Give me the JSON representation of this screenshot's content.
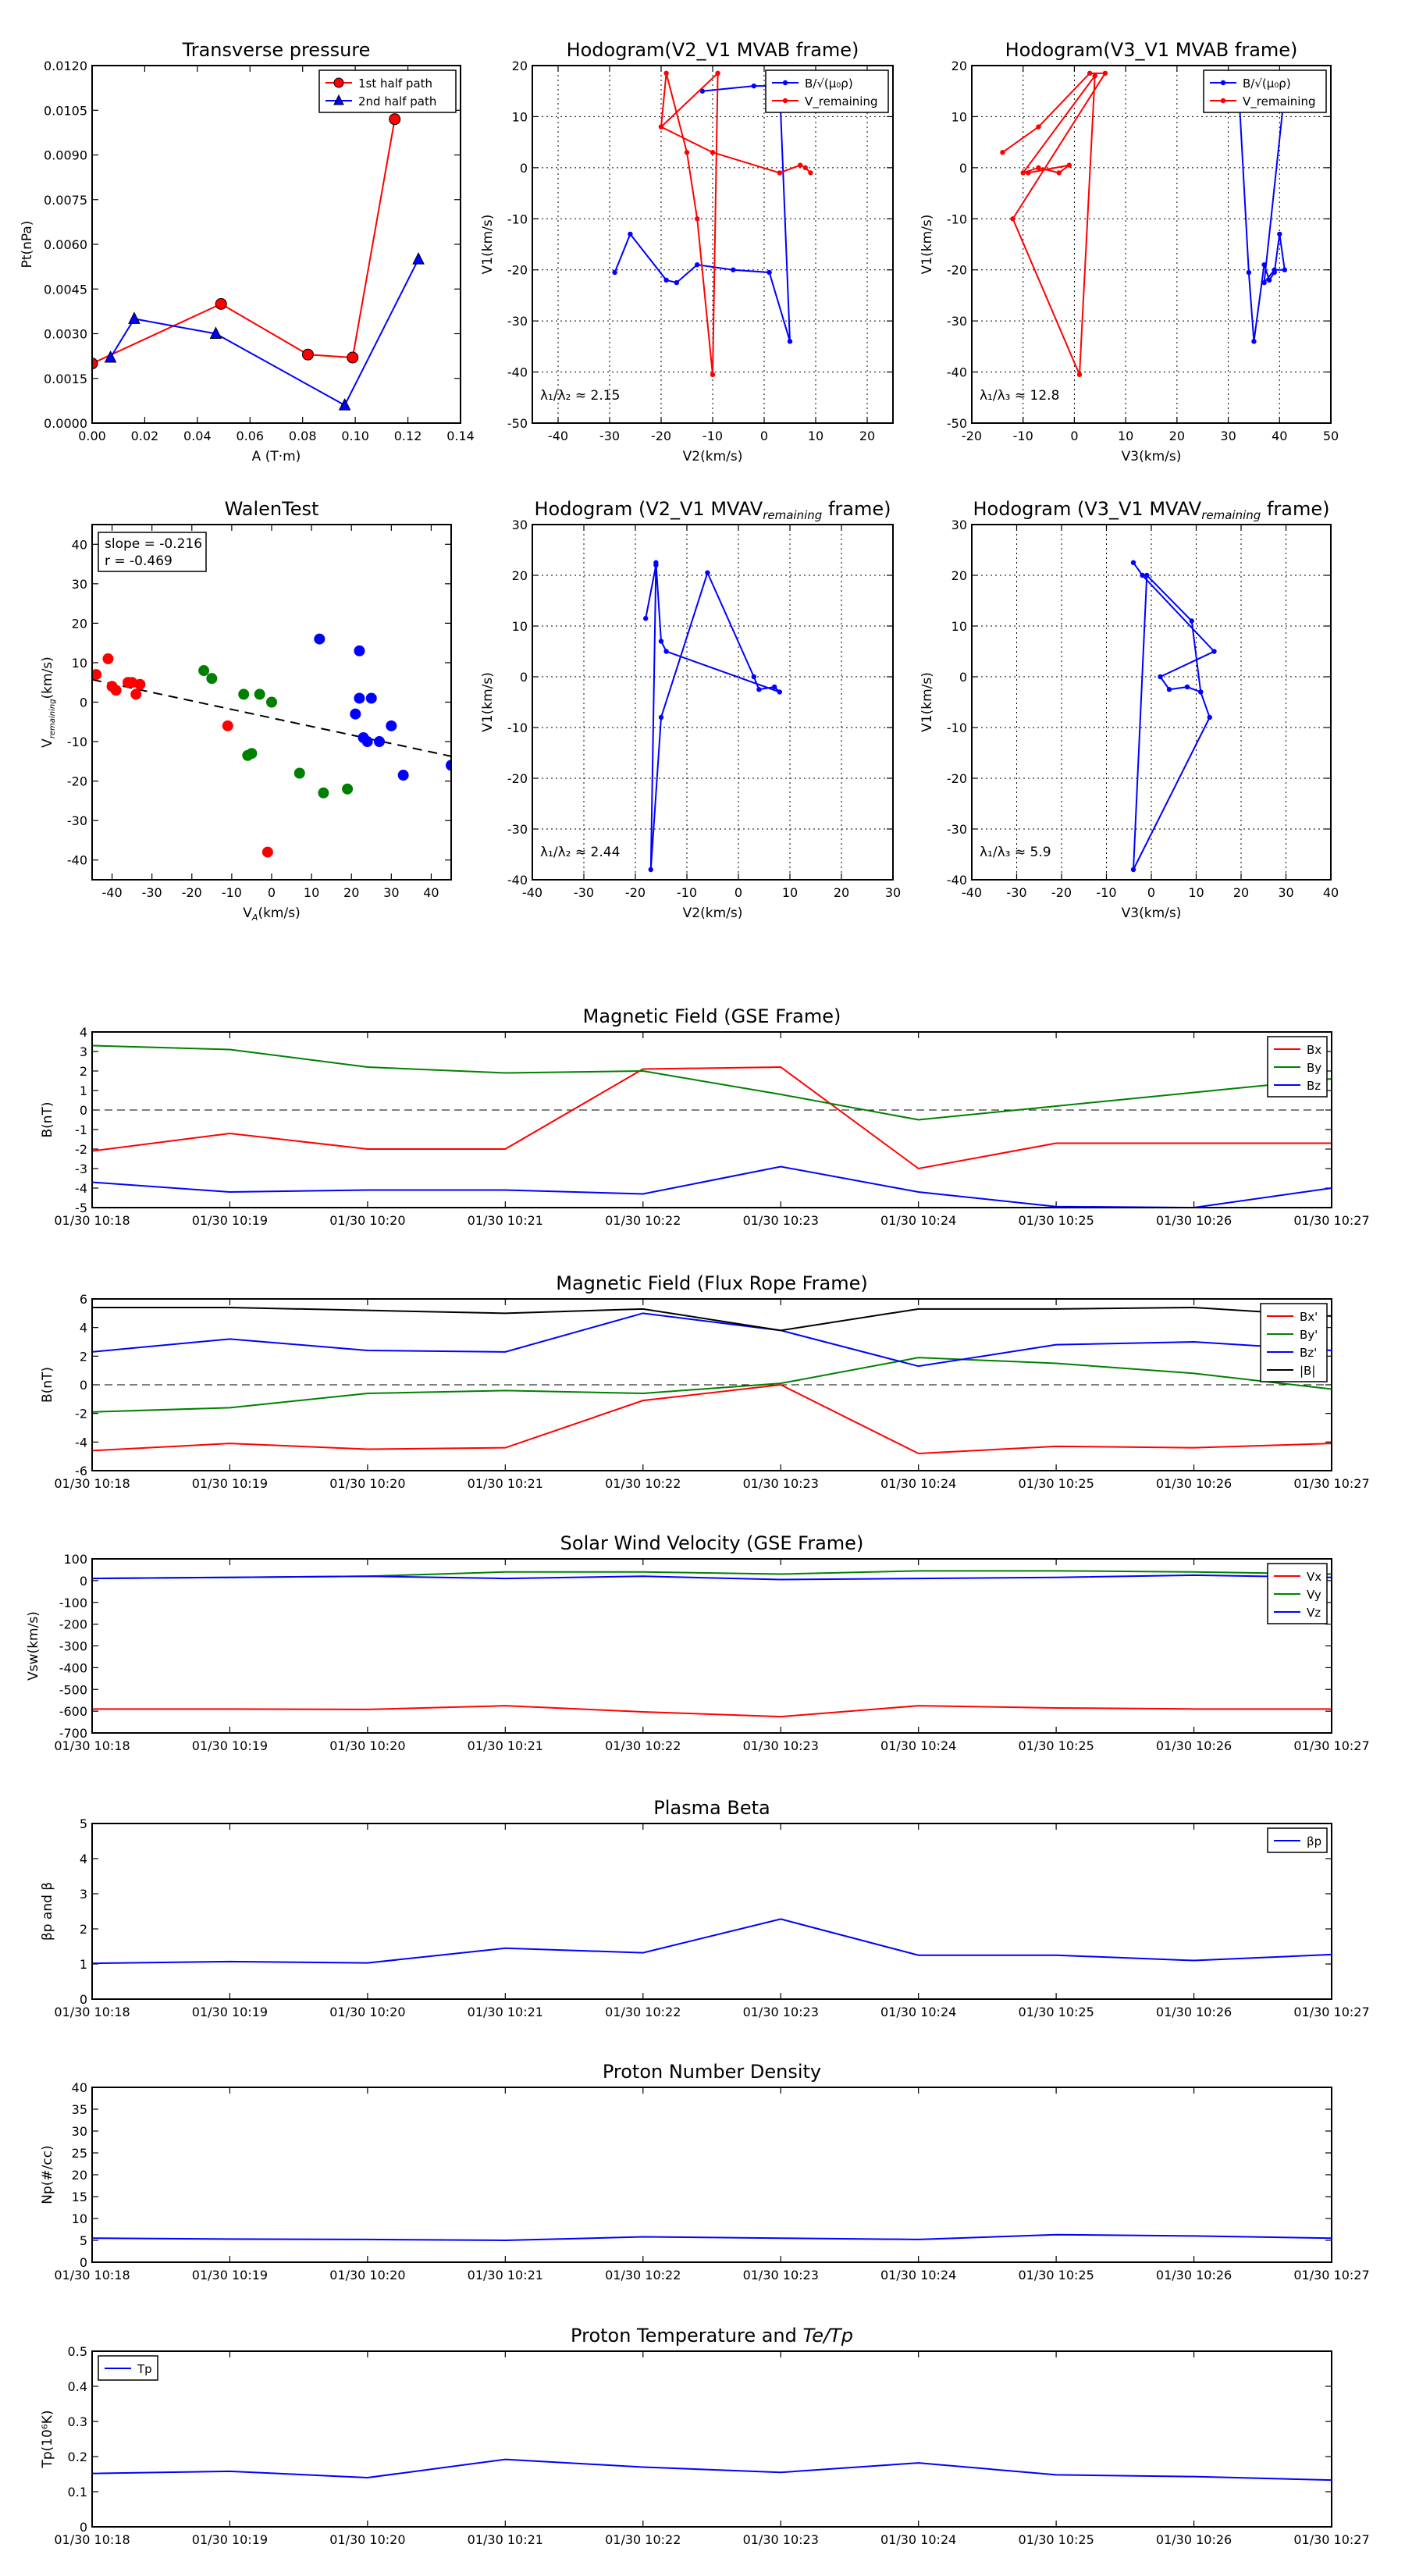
{
  "chart_data": [
    {
      "type": "line",
      "title": "Transverse pressure",
      "xlabel": "A (T·m)",
      "ylabel": "Pt(nPa)",
      "xlim": [
        0.0,
        0.14
      ],
      "ylim": [
        0.0,
        0.012
      ],
      "xticks": [
        0.0,
        0.02,
        0.04,
        0.06,
        0.08,
        0.1,
        0.12,
        0.14
      ],
      "xticklabels": [
        "0.00",
        "0.02",
        "0.04",
        "0.06",
        "0.08",
        "0.10",
        "0.12",
        "0.14"
      ],
      "yticks": [
        0,
        0.0015,
        0.003,
        0.0045,
        0.006,
        0.0075,
        0.009,
        0.0105,
        0.012
      ],
      "yticklabels": [
        "0.0000",
        "0.0015",
        "0.0030",
        "0.0045",
        "0.0060",
        "0.0075",
        "0.0090",
        "0.0105",
        "0.0120"
      ],
      "grid": false,
      "legend_loc": "top-right",
      "series": [
        {
          "name": "1st half path",
          "color": "#ff0000",
          "marker": "circle",
          "x": [
            0.0,
            0.049,
            0.082,
            0.099,
            0.115
          ],
          "y": [
            0.002,
            0.004,
            0.0023,
            0.0022,
            0.0102
          ]
        },
        {
          "name": "2nd half path",
          "color": "#0000ff",
          "marker": "triangle",
          "x": [
            0.007,
            0.016,
            0.047,
            0.096,
            0.124
          ],
          "y": [
            0.0022,
            0.0035,
            0.003,
            0.0006,
            0.0055
          ]
        }
      ]
    },
    {
      "type": "line",
      "title": "Hodogram(V2_V1 MVAB frame)",
      "xlabel": "V2(km/s)",
      "ylabel": "V1(km/s)",
      "xlim": [
        -45,
        25
      ],
      "ylim": [
        -50,
        20
      ],
      "xticks": [
        -40,
        -30,
        -20,
        -10,
        0,
        10,
        20
      ],
      "yticks": [
        -50,
        -40,
        -30,
        -20,
        -10,
        0,
        10,
        20
      ],
      "grid": true,
      "legend_loc": "top-right",
      "annotation": "λ₁/λ₂ ≈ 2.15",
      "series": [
        {
          "name": "B/√(μ₀ρ)",
          "color": "#0000ff",
          "x": [
            -29,
            -26,
            -19,
            -17,
            -13,
            -6,
            1,
            5,
            3,
            -2,
            -12
          ],
          "y": [
            -20.5,
            -13,
            -22,
            -22.5,
            -19,
            -20,
            -20.5,
            -34,
            16,
            16,
            15
          ]
        },
        {
          "name": "V_remaining",
          "color": "#ff0000",
          "x": [
            -20,
            -19,
            -15,
            -13,
            -10,
            -9,
            -20,
            -10,
            3,
            7,
            8,
            9
          ],
          "y": [
            8,
            18.5,
            3,
            -10,
            -40.5,
            18.5,
            8,
            3,
            -1,
            0.5,
            0,
            -1
          ]
        }
      ]
    },
    {
      "type": "line",
      "title": "Hodogram(V3_V1 MVAB frame)",
      "xlabel": "V3(km/s)",
      "ylabel": "V1(km/s)",
      "xlim": [
        -20,
        50
      ],
      "ylim": [
        -50,
        20
      ],
      "xticks": [
        -20,
        -10,
        0,
        10,
        20,
        30,
        40,
        50
      ],
      "yticks": [
        -50,
        -40,
        -30,
        -20,
        -10,
        0,
        10,
        20
      ],
      "grid": true,
      "legend_loc": "top-right",
      "annotation": "λ₁/λ₃ ≈ 12.8",
      "series": [
        {
          "name": "B/√(μ₀ρ)",
          "color": "#0000ff",
          "x": [
            30,
            32,
            34,
            35,
            37,
            38,
            39,
            40,
            41,
            39,
            37,
            41
          ],
          "y": [
            16,
            16,
            -20.5,
            -34,
            -19,
            -22,
            -20.5,
            -13,
            -20,
            -20,
            -22.5,
            15
          ]
        },
        {
          "name": "V_remaining",
          "color": "#ff0000",
          "x": [
            -14,
            -7,
            3,
            6,
            -12,
            1,
            4,
            -10,
            -7,
            -3,
            -1,
            -9
          ],
          "y": [
            3,
            8,
            18.5,
            18.5,
            -10,
            -40.5,
            18,
            -1,
            0,
            -1,
            0.5,
            -1
          ]
        }
      ]
    },
    {
      "type": "scatter",
      "title": "WalenTest",
      "xlabel": "V_A(km/s)",
      "ylabel": "V_remaining(km/s)",
      "xlim": [
        -45,
        45
      ],
      "ylim": [
        -45,
        45
      ],
      "xticks": [
        -40,
        -30,
        -20,
        -10,
        0,
        10,
        20,
        30,
        40
      ],
      "yticks": [
        -40,
        -30,
        -20,
        -10,
        0,
        10,
        20,
        30,
        40
      ],
      "grid": false,
      "annotation": [
        "slope = -0.216",
        "r = -0.469"
      ],
      "fit_line": {
        "slope": -0.216,
        "intercept": -4.0
      },
      "series": [
        {
          "color": "#ff0000",
          "x": [
            -44,
            -41,
            -40,
            -39,
            -36,
            -35,
            -34,
            -33,
            -11,
            -1
          ],
          "y": [
            7,
            11,
            4,
            3,
            5,
            5,
            2,
            4.5,
            -6,
            -38
          ]
        },
        {
          "color": "#008000",
          "x": [
            -17,
            -15,
            -7,
            -6,
            -5,
            -3,
            0,
            7,
            13,
            19
          ],
          "y": [
            8,
            6,
            2,
            -13.5,
            -13,
            2,
            0,
            -18,
            -23,
            -22
          ]
        },
        {
          "color": "#0000ff",
          "x": [
            12,
            21,
            22,
            22,
            23,
            24,
            25,
            27,
            30,
            33,
            45
          ],
          "y": [
            16,
            -3,
            1,
            13,
            -9,
            -10,
            1,
            -10,
            -6,
            -18.5,
            -16
          ]
        }
      ]
    },
    {
      "type": "line",
      "title": "Hodogram (V2_V1 MVAV",
      "title_sub": "remaining",
      "title_end": " frame)",
      "xlabel": "V2(km/s)",
      "ylabel": "V1(km/s)",
      "xlim": [
        -40,
        30
      ],
      "ylim": [
        -40,
        30
      ],
      "xticks": [
        -40,
        -30,
        -20,
        -10,
        0,
        10,
        20,
        30
      ],
      "yticks": [
        -40,
        -30,
        -20,
        -10,
        0,
        10,
        20,
        30
      ],
      "grid": true,
      "annotation": "λ₁/λ₂ ≈ 2.44",
      "series": [
        {
          "color": "#0000ff",
          "x": [
            -18,
            -16,
            -17,
            -15,
            -6,
            3,
            4,
            7,
            8,
            -14,
            -15,
            -16
          ],
          "y": [
            11.5,
            22,
            -38,
            -8,
            20.5,
            0,
            -2.5,
            -2,
            -3,
            5,
            7,
            22.5
          ]
        }
      ]
    },
    {
      "type": "line",
      "title": "Hodogram (V3_V1 MVAV",
      "title_sub": "remaining",
      "title_end": " frame)",
      "xlabel": "V3(km/s)",
      "ylabel": "V1(km/s)",
      "xlim": [
        -40,
        40
      ],
      "ylim": [
        -40,
        30
      ],
      "xticks": [
        -40,
        -30,
        -20,
        -10,
        0,
        10,
        20,
        30,
        40
      ],
      "yticks": [
        -40,
        -30,
        -20,
        -10,
        0,
        10,
        20,
        30
      ],
      "grid": true,
      "annotation": "λ₁/λ₃ ≈ 5.9",
      "series": [
        {
          "color": "#0000ff",
          "x": [
            -4,
            -2,
            14,
            2,
            4,
            8,
            11,
            13,
            -4,
            -1,
            9,
            11
          ],
          "y": [
            22.5,
            20,
            5,
            0,
            -2.5,
            -2,
            -3,
            -8,
            -38,
            20,
            11,
            -3
          ]
        }
      ]
    },
    {
      "type": "line",
      "title": "Magnetic Field (GSE Frame)",
      "xlabel": "",
      "ylabel": "B(nT)",
      "ylim": [
        -5,
        4
      ],
      "yticks": [
        -5,
        -4,
        -3,
        -2,
        -1,
        0,
        1,
        2,
        3,
        4
      ],
      "x": [
        "01/30 10:18",
        "01/30 10:19",
        "01/30 10:20",
        "01/30 10:21",
        "01/30 10:22",
        "01/30 10:23",
        "01/30 10:24",
        "01/30 10:25",
        "01/30 10:26",
        "01/30 10:27"
      ],
      "zero_line": true,
      "legend_loc": "top-right",
      "series": [
        {
          "name": "Bx",
          "color": "#ff0000",
          "values": [
            -2.1,
            -1.2,
            -2.0,
            -2.0,
            2.1,
            2.2,
            -3.0,
            -1.7,
            -1.7,
            -1.7
          ]
        },
        {
          "name": "By",
          "color": "#008000",
          "values": [
            3.3,
            3.1,
            2.2,
            1.9,
            2.0,
            0.8,
            -0.5,
            0.2,
            0.9,
            1.6
          ]
        },
        {
          "name": "Bz",
          "color": "#0000ff",
          "values": [
            -3.7,
            -4.2,
            -4.1,
            -4.1,
            -4.3,
            -2.9,
            -4.2,
            -4.95,
            -5.0,
            -4.0
          ]
        }
      ]
    },
    {
      "type": "line",
      "title": "Magnetic Field (Flux Rope Frame)",
      "xlabel": "",
      "ylabel": "B(nT)",
      "ylim": [
        -6,
        6
      ],
      "yticks": [
        -6,
        -4,
        -2,
        0,
        2,
        4,
        6
      ],
      "x": [
        "01/30 10:18",
        "01/30 10:19",
        "01/30 10:20",
        "01/30 10:21",
        "01/30 10:22",
        "01/30 10:23",
        "01/30 10:24",
        "01/30 10:25",
        "01/30 10:26",
        "01/30 10:27"
      ],
      "zero_line": true,
      "legend_loc": "top-right",
      "series": [
        {
          "name": "Bx'",
          "color": "#ff0000",
          "values": [
            -4.6,
            -4.1,
            -4.5,
            -4.4,
            -1.1,
            0.0,
            -4.8,
            -4.3,
            -4.4,
            -4.1
          ]
        },
        {
          "name": "By'",
          "color": "#008000",
          "values": [
            -1.9,
            -1.6,
            -0.6,
            -0.4,
            -0.6,
            0.1,
            1.9,
            1.5,
            0.8,
            -0.3
          ]
        },
        {
          "name": "Bz'",
          "color": "#0000ff",
          "values": [
            2.3,
            3.2,
            2.4,
            2.3,
            5.0,
            3.8,
            1.3,
            2.8,
            3.0,
            2.4
          ]
        },
        {
          "name": "|B|",
          "color": "#000000",
          "values": [
            5.4,
            5.4,
            5.2,
            5.0,
            5.3,
            3.8,
            5.3,
            5.3,
            5.4,
            4.8
          ]
        }
      ]
    },
    {
      "type": "line",
      "title": "Solar Wind Velocity (GSE Frame)",
      "xlabel": "",
      "ylabel": "Vsw(km/s)",
      "ylim": [
        -700,
        100
      ],
      "yticks": [
        -700,
        -600,
        -500,
        -400,
        -300,
        -200,
        -100,
        0,
        100
      ],
      "x": [
        "01/30 10:18",
        "01/30 10:19",
        "01/30 10:20",
        "01/30 10:21",
        "01/30 10:22",
        "01/30 10:23",
        "01/30 10:24",
        "01/30 10:25",
        "01/30 10:26",
        "01/30 10:27"
      ],
      "legend_loc": "top-right",
      "series": [
        {
          "name": "Vx",
          "color": "#ff0000",
          "values": [
            -590,
            -590,
            -592,
            -575,
            -603,
            -625,
            -575,
            -585,
            -590,
            -590
          ]
        },
        {
          "name": "Vy",
          "color": "#008000",
          "values": [
            10,
            15,
            20,
            40,
            40,
            30,
            45,
            45,
            40,
            30
          ]
        },
        {
          "name": "Vz",
          "color": "#0000ff",
          "values": [
            10,
            15,
            20,
            10,
            20,
            5,
            10,
            15,
            25,
            15
          ]
        }
      ]
    },
    {
      "type": "line",
      "title": "Plasma Beta",
      "xlabel": "",
      "ylabel": "βp and β",
      "ylim": [
        0,
        5
      ],
      "yticks": [
        0,
        1,
        2,
        3,
        4,
        5
      ],
      "x": [
        "01/30 10:18",
        "01/30 10:19",
        "01/30 10:20",
        "01/30 10:21",
        "01/30 10:22",
        "01/30 10:23",
        "01/30 10:24",
        "01/30 10:25",
        "01/30 10:26",
        "01/30 10:27"
      ],
      "legend_loc": "top-right",
      "series": [
        {
          "name": "βp",
          "color": "#0000ff",
          "values": [
            1.02,
            1.07,
            1.03,
            1.45,
            1.32,
            2.28,
            1.25,
            1.25,
            1.1,
            1.27
          ]
        }
      ]
    },
    {
      "type": "line",
      "title": "Proton Number Density",
      "xlabel": "",
      "ylabel": "Np(#/cc)",
      "ylim": [
        0,
        40
      ],
      "yticks": [
        0,
        5,
        10,
        15,
        20,
        25,
        30,
        35,
        40
      ],
      "x": [
        "01/30 10:18",
        "01/30 10:19",
        "01/30 10:20",
        "01/30 10:21",
        "01/30 10:22",
        "01/30 10:23",
        "01/30 10:24",
        "01/30 10:25",
        "01/30 10:26",
        "01/30 10:27"
      ],
      "series": [
        {
          "color": "#0000ff",
          "values": [
            5.5,
            5.3,
            5.2,
            5.0,
            5.8,
            5.5,
            5.2,
            6.3,
            6.0,
            5.5
          ]
        }
      ]
    },
    {
      "type": "line",
      "title": "Proton Temperature and ",
      "title_math": "Te/Tp",
      "xlabel": "",
      "ylabel": "Tp(10⁶K)",
      "ylim": [
        0,
        0.5
      ],
      "yticks": [
        0.0,
        0.1,
        0.2,
        0.3,
        0.4,
        0.5
      ],
      "x": [
        "01/30 10:18",
        "01/30 10:19",
        "01/30 10:20",
        "01/30 10:21",
        "01/30 10:22",
        "01/30 10:23",
        "01/30 10:24",
        "01/30 10:25",
        "01/30 10:26",
        "01/30 10:27"
      ],
      "legend_loc": "top-left",
      "series": [
        {
          "name": "Tp",
          "color": "#0000ff",
          "values": [
            0.152,
            0.158,
            0.14,
            0.192,
            0.17,
            0.155,
            0.182,
            0.148,
            0.143,
            0.133
          ]
        }
      ]
    }
  ]
}
